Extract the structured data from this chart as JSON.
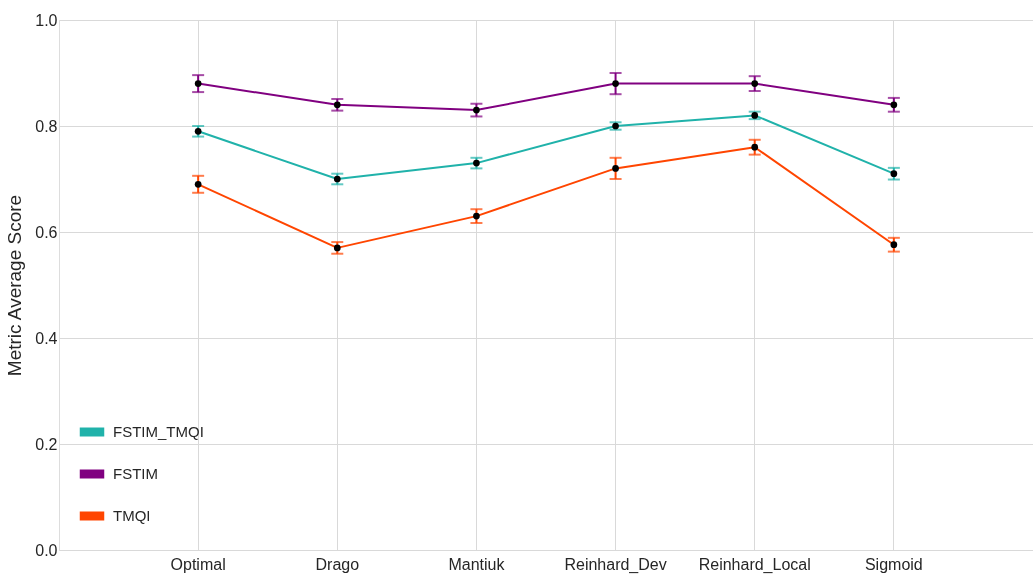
{
  "chart_data": {
    "type": "line",
    "ylabel": "Metric Average Score",
    "categories": [
      "Optimal",
      "Drago",
      "Mantiuk",
      "Reinhard_Dev",
      "Reinhard_Local",
      "Sigmoid"
    ],
    "series": [
      {
        "name": "FSTIM_TMQI",
        "color": "#20b2aa",
        "values": [
          0.79,
          0.7,
          0.73,
          0.8,
          0.82,
          0.71
        ],
        "errors": [
          0.01,
          0.01,
          0.01,
          0.007,
          0.007,
          0.011
        ]
      },
      {
        "name": "FSTIM",
        "color": "#800080",
        "values": [
          0.88,
          0.84,
          0.83,
          0.88,
          0.88,
          0.84
        ],
        "errors": [
          0.016,
          0.011,
          0.012,
          0.02,
          0.014,
          0.013
        ]
      },
      {
        "name": "TMQI",
        "color": "#ff4500",
        "values": [
          0.69,
          0.57,
          0.63,
          0.72,
          0.76,
          0.576
        ],
        "errors": [
          0.016,
          0.011,
          0.013,
          0.02,
          0.014,
          0.013
        ]
      }
    ],
    "ylim": [
      0.0,
      1.0
    ],
    "yticks": [
      {
        "value": 0.0,
        "label": "0.0"
      },
      0.2,
      0.4,
      0.6,
      0.8,
      {
        "value": 1.0,
        "label": "1.0"
      }
    ],
    "grid": true,
    "legend": "bottom left",
    "marker": "circle",
    "line_style": "solid"
  }
}
